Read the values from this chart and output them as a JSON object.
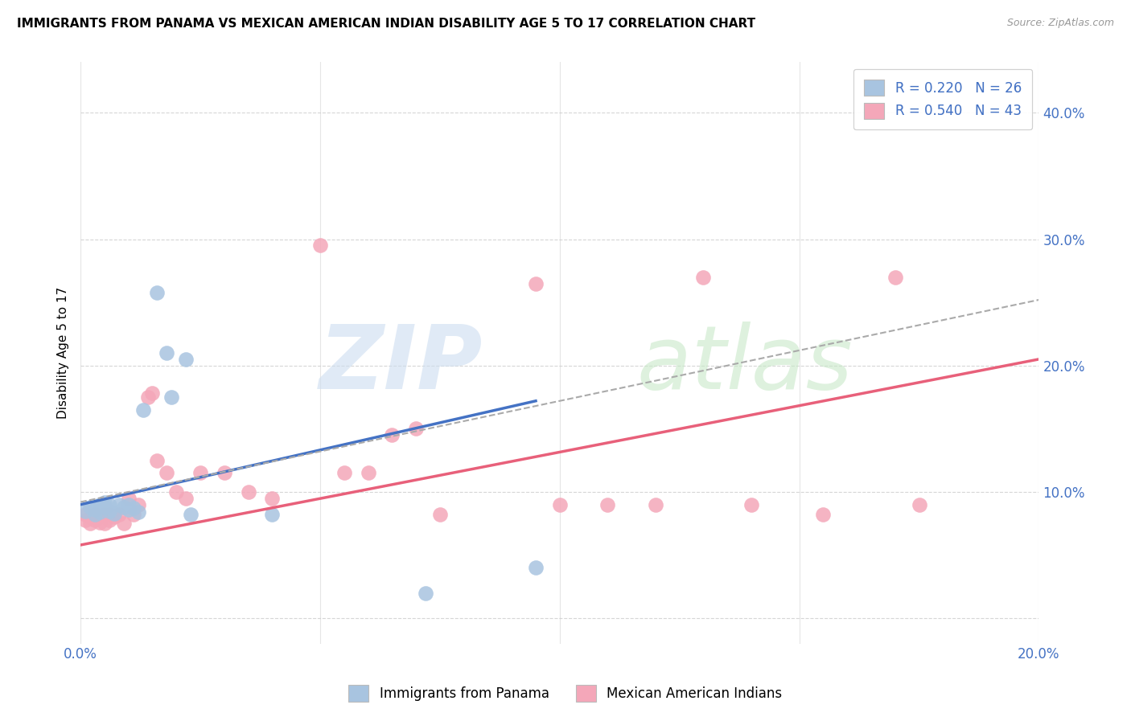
{
  "title": "IMMIGRANTS FROM PANAMA VS MEXICAN AMERICAN INDIAN DISABILITY AGE 5 TO 17 CORRELATION CHART",
  "source": "Source: ZipAtlas.com",
  "ylabel": "Disability Age 5 to 17",
  "xlim": [
    0.0,
    0.2
  ],
  "ylim": [
    -0.02,
    0.44
  ],
  "xticks": [
    0.0,
    0.05,
    0.1,
    0.15,
    0.2
  ],
  "yticks": [
    0.0,
    0.1,
    0.2,
    0.3,
    0.4
  ],
  "blue_color": "#a8c4e0",
  "pink_color": "#f4a7b9",
  "blue_line_color": "#4472c4",
  "pink_line_color": "#e8607a",
  "dashed_line_color": "#aaaaaa",
  "legend1_label": "R = 0.220   N = 26",
  "legend2_label": "R = 0.540   N = 43",
  "legend_bottom_label1": "Immigrants from Panama",
  "legend_bottom_label2": "Mexican American Indians",
  "panama_scatter": [
    [
      0.001,
      0.085
    ],
    [
      0.002,
      0.088
    ],
    [
      0.003,
      0.086
    ],
    [
      0.003,
      0.082
    ],
    [
      0.004,
      0.09
    ],
    [
      0.004,
      0.084
    ],
    [
      0.005,
      0.092
    ],
    [
      0.005,
      0.088
    ],
    [
      0.006,
      0.09
    ],
    [
      0.006,
      0.085
    ],
    [
      0.007,
      0.083
    ],
    [
      0.008,
      0.09
    ],
    [
      0.009,
      0.088
    ],
    [
      0.01,
      0.09
    ],
    [
      0.01,
      0.086
    ],
    [
      0.011,
      0.087
    ],
    [
      0.012,
      0.084
    ],
    [
      0.013,
      0.165
    ],
    [
      0.016,
      0.258
    ],
    [
      0.018,
      0.21
    ],
    [
      0.019,
      0.175
    ],
    [
      0.022,
      0.205
    ],
    [
      0.023,
      0.082
    ],
    [
      0.04,
      0.082
    ],
    [
      0.072,
      0.02
    ],
    [
      0.095,
      0.04
    ]
  ],
  "mexican_scatter": [
    [
      0.001,
      0.078
    ],
    [
      0.001,
      0.082
    ],
    [
      0.002,
      0.08
    ],
    [
      0.002,
      0.075
    ],
    [
      0.003,
      0.078
    ],
    [
      0.003,
      0.082
    ],
    [
      0.004,
      0.076
    ],
    [
      0.004,
      0.08
    ],
    [
      0.005,
      0.082
    ],
    [
      0.005,
      0.075
    ],
    [
      0.006,
      0.082
    ],
    [
      0.006,
      0.078
    ],
    [
      0.007,
      0.08
    ],
    [
      0.008,
      0.082
    ],
    [
      0.009,
      0.075
    ],
    [
      0.01,
      0.095
    ],
    [
      0.011,
      0.082
    ],
    [
      0.012,
      0.09
    ],
    [
      0.014,
      0.175
    ],
    [
      0.015,
      0.178
    ],
    [
      0.016,
      0.125
    ],
    [
      0.018,
      0.115
    ],
    [
      0.02,
      0.1
    ],
    [
      0.022,
      0.095
    ],
    [
      0.025,
      0.115
    ],
    [
      0.03,
      0.115
    ],
    [
      0.035,
      0.1
    ],
    [
      0.04,
      0.095
    ],
    [
      0.05,
      0.295
    ],
    [
      0.055,
      0.115
    ],
    [
      0.06,
      0.115
    ],
    [
      0.065,
      0.145
    ],
    [
      0.07,
      0.15
    ],
    [
      0.075,
      0.082
    ],
    [
      0.095,
      0.265
    ],
    [
      0.1,
      0.09
    ],
    [
      0.11,
      0.09
    ],
    [
      0.12,
      0.09
    ],
    [
      0.13,
      0.27
    ],
    [
      0.14,
      0.09
    ],
    [
      0.155,
      0.082
    ],
    [
      0.17,
      0.27
    ],
    [
      0.175,
      0.09
    ]
  ],
  "blue_trendline_x": [
    0.0,
    0.095
  ],
  "blue_trendline_y": [
    0.09,
    0.172
  ],
  "pink_trendline_x": [
    0.0,
    0.2
  ],
  "pink_trendline_y": [
    0.058,
    0.205
  ],
  "dashed_trendline_x": [
    0.0,
    0.2
  ],
  "dashed_trendline_y": [
    0.092,
    0.252
  ]
}
